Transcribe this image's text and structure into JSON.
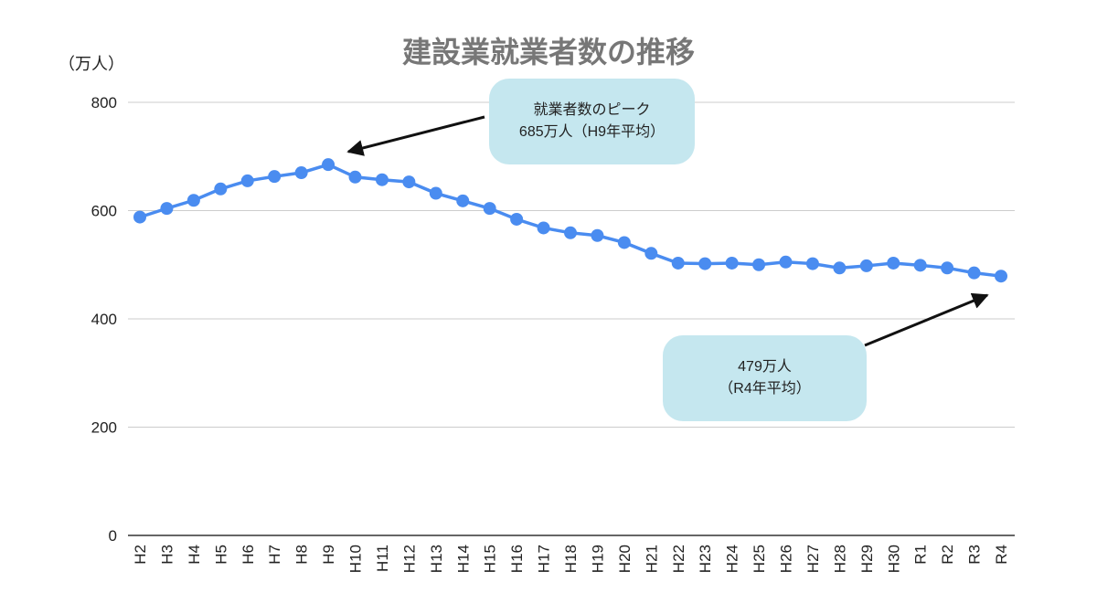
{
  "chart_data": {
    "type": "line",
    "title": "建設業就業者数の推移",
    "ylabel": "（万人）",
    "xlabel": "",
    "ylim": [
      0,
      800
    ],
    "yticks": [
      0,
      200,
      400,
      600,
      800
    ],
    "grid": true,
    "color": "#4a8cf0",
    "categories": [
      "H2",
      "H3",
      "H4",
      "H5",
      "H6",
      "H7",
      "H8",
      "H9",
      "H10",
      "H11",
      "H12",
      "H13",
      "H14",
      "H15",
      "H16",
      "H17",
      "H18",
      "H19",
      "H20",
      "H21",
      "H22",
      "H23",
      "H24",
      "H25",
      "H26",
      "H27",
      "H28",
      "H29",
      "H30",
      "R1",
      "R2",
      "R3",
      "R4"
    ],
    "values": [
      588,
      604,
      619,
      640,
      655,
      663,
      670,
      685,
      662,
      657,
      653,
      632,
      618,
      604,
      584,
      568,
      559,
      554,
      541,
      521,
      503,
      502,
      503,
      500,
      505,
      502,
      494,
      498,
      503,
      499,
      494,
      485,
      479
    ],
    "annotations": [
      {
        "lines": [
          "就業者数のピーク",
          "685万人（H9年平均）"
        ],
        "target": "H9"
      },
      {
        "lines": [
          "479万人",
          "（R4年平均）"
        ],
        "target": "R4"
      }
    ]
  }
}
